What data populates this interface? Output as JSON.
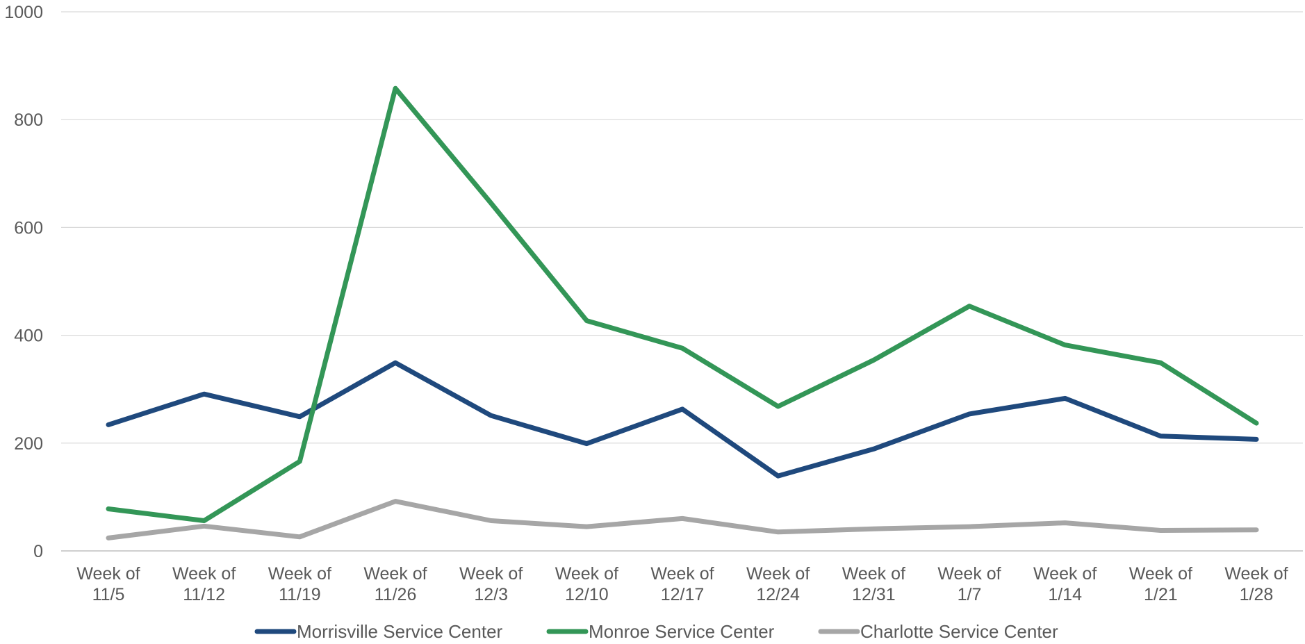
{
  "chart_data": {
    "type": "line",
    "title": "",
    "xlabel": "",
    "ylabel": "",
    "ylim": [
      0,
      1000
    ],
    "yticks": [
      0,
      200,
      400,
      600,
      800,
      1000
    ],
    "grid": true,
    "legend": "bottom",
    "categories": [
      [
        "Week of",
        "11/5"
      ],
      [
        "Week of",
        "11/12"
      ],
      [
        "Week of",
        "11/19"
      ],
      [
        "Week of",
        "11/26"
      ],
      [
        "Week of",
        "12/3"
      ],
      [
        "Week of",
        "12/10"
      ],
      [
        "Week of",
        "12/17"
      ],
      [
        "Week of",
        "12/24"
      ],
      [
        "Week of",
        "12/31"
      ],
      [
        "Week of",
        "1/7"
      ],
      [
        "Week of",
        "1/14"
      ],
      [
        "Week of",
        "1/21"
      ],
      [
        "Week of",
        "1/28"
      ]
    ],
    "series": [
      {
        "name": "Morrisville Service Center",
        "color": "#1f497d",
        "values": [
          234,
          291,
          249,
          349,
          251,
          199,
          263,
          139,
          189,
          254,
          283,
          213,
          207
        ]
      },
      {
        "name": "Monroe Service Center",
        "color": "#339657",
        "values": [
          78,
          56,
          166,
          858,
          645,
          427,
          376,
          268,
          354,
          454,
          382,
          349,
          237
        ]
      },
      {
        "name": "Charlotte Service Center",
        "color": "#a6a6a6",
        "values": [
          24,
          46,
          26,
          92,
          56,
          45,
          60,
          35,
          41,
          45,
          52,
          38,
          39
        ]
      }
    ]
  }
}
